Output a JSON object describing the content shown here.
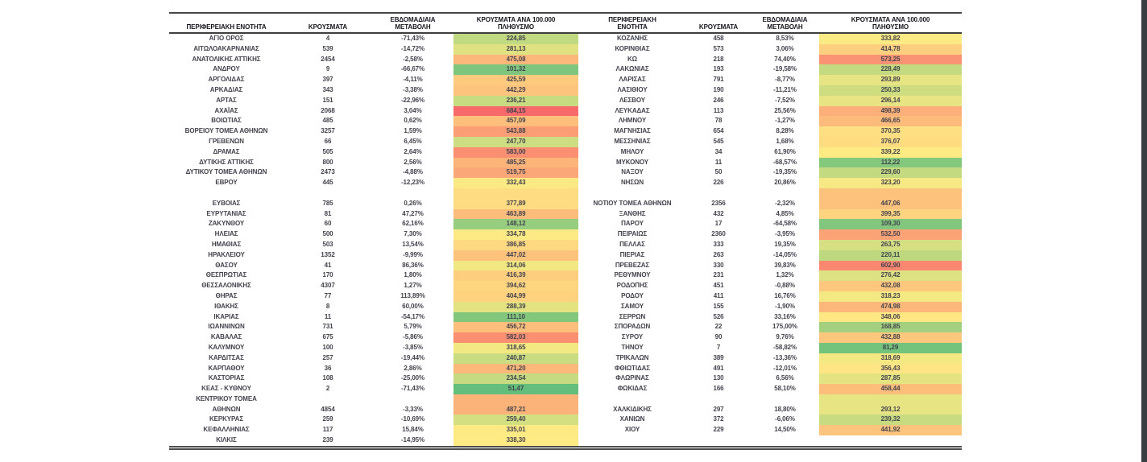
{
  "page": {
    "background": "#ffffff"
  },
  "window_edge": {
    "color": "#3b3e42"
  },
  "color_scale": {
    "min_value": 51.47,
    "mid_value": 339.22,
    "max_value": 684.15,
    "min_color": "#63BE7B",
    "mid_color": "#FFEB84",
    "max_color": "#F8696B"
  },
  "columns": [
    "ΠΕΡΙΦΕΡΕΙΑΚΗ ΕΝΟΤΗΤΑ",
    "ΚΡΟΥΣΜΑΤΑ",
    "ΕΒΔΟΜΑΔΙΑΙΑ ΜΕΤΑΒΟΛΗ",
    "ΚΡΟΥΣΜΑΤΑ ΑΝΑ 100.000 ΠΛΗΘΥΣΜΟ"
  ],
  "tables": {
    "left": {
      "rows": [
        {
          "region": "ΑΓΙΟ ΟΡΟΣ",
          "cases": "4",
          "weekly_change": "-71,43%",
          "per_100k": "224,85"
        },
        {
          "region": "ΑΙΤΩΛΟΑΚΑΡΝΑΝΙΑΣ",
          "cases": "539",
          "weekly_change": "-14,72%",
          "per_100k": "281,13"
        },
        {
          "region": "ΑΝΑΤΟΛΙΚΗΣ ΑΤΤΙΚΗΣ",
          "cases": "2454",
          "weekly_change": "-2,58%",
          "per_100k": "475,08"
        },
        {
          "region": "ΑΝΔΡΟΥ",
          "cases": "9",
          "weekly_change": "-66,67%",
          "per_100k": "101,32"
        },
        {
          "region": "ΑΡΓΟΛΙΔΑΣ",
          "cases": "397",
          "weekly_change": "-4,11%",
          "per_100k": "425,59"
        },
        {
          "region": "ΑΡΚΑΔΙΑΣ",
          "cases": "343",
          "weekly_change": "-3,38%",
          "per_100k": "442,29"
        },
        {
          "region": "ΑΡΤΑΣ",
          "cases": "151",
          "weekly_change": "-22,96%",
          "per_100k": "236,21"
        },
        {
          "region": "ΑΧΑΪΑΣ",
          "cases": "2068",
          "weekly_change": "3,04%",
          "per_100k": "684,15"
        },
        {
          "region": "ΒΟΙΩΤΙΑΣ",
          "cases": "485",
          "weekly_change": "0,62%",
          "per_100k": "457,09"
        },
        {
          "region": "ΒΟΡΕΙΟΥ ΤΟΜΕΑ ΑΘΗΝΩΝ",
          "cases": "3257",
          "weekly_change": "1,59%",
          "per_100k": "543,88"
        },
        {
          "region": "ΓΡΕΒΕΝΩΝ",
          "cases": "66",
          "weekly_change": "6,45%",
          "per_100k": "247,70"
        },
        {
          "region": "ΔΡΑΜΑΣ",
          "cases": "505",
          "weekly_change": "2,64%",
          "per_100k": "583,00"
        },
        {
          "region": "ΔΥΤΙΚΗΣ ΑΤΤΙΚΗΣ",
          "cases": "800",
          "weekly_change": "2,56%",
          "per_100k": "485,25"
        },
        {
          "region": "ΔΥΤΙΚΟΥ ΤΟΜΕΑ ΑΘΗΝΩΝ",
          "cases": "2473",
          "weekly_change": "-4,88%",
          "per_100k": "519,75"
        },
        {
          "region": "ΕΒΡΟΥ",
          "cases": "445",
          "weekly_change": "-12,23%",
          "per_100k": "332,43"
        },
        {
          "region": "ΕΥΒΟΙΑΣ",
          "cases": "785",
          "weekly_change": "0,26%",
          "per_100k": "377,89",
          "tall": true
        },
        {
          "region": "ΕΥΡΥΤΑΝΙΑΣ",
          "cases": "81",
          "weekly_change": "47,27%",
          "per_100k": "463,89"
        },
        {
          "region": "ΖΑΚΥΝΘΟΥ",
          "cases": "60",
          "weekly_change": "62,16%",
          "per_100k": "148,12"
        },
        {
          "region": "ΗΛΕΙΑΣ",
          "cases": "500",
          "weekly_change": "7,30%",
          "per_100k": "334,78"
        },
        {
          "region": "ΗΜΑΘΙΑΣ",
          "cases": "503",
          "weekly_change": "13,54%",
          "per_100k": "386,85"
        },
        {
          "region": "ΗΡΑΚΛΕΙΟΥ",
          "cases": "1352",
          "weekly_change": "-9,99%",
          "per_100k": "447,02"
        },
        {
          "region": "ΘΑΣΟΥ",
          "cases": "41",
          "weekly_change": "86,36%",
          "per_100k": "314,06"
        },
        {
          "region": "ΘΕΣΠΡΩΤΙΑΣ",
          "cases": "170",
          "weekly_change": "1,80%",
          "per_100k": "416,39"
        },
        {
          "region": "ΘΕΣΣΑΛΟΝΙΚΗΣ",
          "cases": "4307",
          "weekly_change": "1,27%",
          "per_100k": "394,62"
        },
        {
          "region": "ΘΗΡΑΣ",
          "cases": "77",
          "weekly_change": "113,89%",
          "per_100k": "404,99"
        },
        {
          "region": "ΙΘΑΚΗΣ",
          "cases": "8",
          "weekly_change": "60,00%",
          "per_100k": "288,39"
        },
        {
          "region": "ΙΚΑΡΙΑΣ",
          "cases": "11",
          "weekly_change": "-54,17%",
          "per_100k": "111,10"
        },
        {
          "region": "ΙΩΑΝΝΙΝΩΝ",
          "cases": "731",
          "weekly_change": "5,79%",
          "per_100k": "456,72"
        },
        {
          "region": "ΚΑΒΑΛΑΣ",
          "cases": "675",
          "weekly_change": "-5,86%",
          "per_100k": "582,03"
        },
        {
          "region": "ΚΑΛΥΜΝΟΥ",
          "cases": "100",
          "weekly_change": "-3,85%",
          "per_100k": "318,65"
        },
        {
          "region": "ΚΑΡΔΙΤΣΑΣ",
          "cases": "257",
          "weekly_change": "-19,44%",
          "per_100k": "240,87"
        },
        {
          "region": "ΚΑΡΠΑΘΟΥ",
          "cases": "36",
          "weekly_change": "2,86%",
          "per_100k": "471,20"
        },
        {
          "region": "ΚΑΣΤΟΡΙΑΣ",
          "cases": "108",
          "weekly_change": "-25,00%",
          "per_100k": "234,54"
        },
        {
          "region": "ΚΕΑΣ - ΚΥΘΝΟΥ",
          "cases": "2",
          "weekly_change": "-71,43%",
          "per_100k": "51,47"
        },
        {
          "region": "ΚΕΝΤΡΙΚΟΥ ΤΟΜΕΑ ΑΘΗΝΩΝ",
          "cases": "4854",
          "weekly_change": "-3,33%",
          "per_100k": "487,21",
          "tall": true,
          "wrap_region": true
        },
        {
          "region": "ΚΕΡΚΥΡΑΣ",
          "cases": "259",
          "weekly_change": "-10,69%",
          "per_100k": "259,40"
        },
        {
          "region": "ΚΕΦΑΛΛΗΝΙΑΣ",
          "cases": "117",
          "weekly_change": "15,84%",
          "per_100k": "335,01"
        },
        {
          "region": "ΚΙΛΚΙΣ",
          "cases": "239",
          "weekly_change": "-14,95%",
          "per_100k": "338,30"
        }
      ]
    },
    "right": {
      "rows": [
        {
          "region": "ΚΟΖΑΝΗΣ",
          "cases": "458",
          "weekly_change": "8,53%",
          "per_100k": "333,82"
        },
        {
          "region": "ΚΟΡΙΝΘΙΑΣ",
          "cases": "573",
          "weekly_change": "3,06%",
          "per_100k": "414,78"
        },
        {
          "region": "ΚΩ",
          "cases": "218",
          "weekly_change": "74,40%",
          "per_100k": "573,25"
        },
        {
          "region": "ΛΑΚΩΝΙΑΣ",
          "cases": "193",
          "weekly_change": "-19,58%",
          "per_100k": "228,49"
        },
        {
          "region": "ΛΑΡΙΣΑΣ",
          "cases": "791",
          "weekly_change": "-8,77%",
          "per_100k": "293,89"
        },
        {
          "region": "ΛΑΣΙΘΙΟΥ",
          "cases": "190",
          "weekly_change": "-11,21%",
          "per_100k": "250,33"
        },
        {
          "region": "ΛΕΣΒΟΥ",
          "cases": "246",
          "weekly_change": "-7,52%",
          "per_100k": "296,14"
        },
        {
          "region": "ΛΕΥΚΑΔΑΣ",
          "cases": "113",
          "weekly_change": "25,56%",
          "per_100k": "498,39"
        },
        {
          "region": "ΛΗΜΝΟΥ",
          "cases": "78",
          "weekly_change": "-1,27%",
          "per_100k": "466,65"
        },
        {
          "region": "ΜΑΓΝΗΣΙΑΣ",
          "cases": "654",
          "weekly_change": "8,28%",
          "per_100k": "370,35"
        },
        {
          "region": "ΜΕΣΣΗΝΙΑΣ",
          "cases": "545",
          "weekly_change": "1,68%",
          "per_100k": "376,07"
        },
        {
          "region": "ΜΗΛΟΥ",
          "cases": "34",
          "weekly_change": "61,90%",
          "per_100k": "339,22"
        },
        {
          "region": "ΜΥΚΟΝΟΥ",
          "cases": "11",
          "weekly_change": "-68,57%",
          "per_100k": "112,22"
        },
        {
          "region": "ΝΑΞΟΥ",
          "cases": "50",
          "weekly_change": "-19,35%",
          "per_100k": "229,60"
        },
        {
          "region": "ΝΗΣΩΝ",
          "cases": "226",
          "weekly_change": "20,86%",
          "per_100k": "323,20"
        },
        {
          "region": "ΝΟΤΙΟΥ ΤΟΜΕΑ ΑΘΗΝΩΝ",
          "cases": "2356",
          "weekly_change": "-2,32%",
          "per_100k": "447,06",
          "tall": true
        },
        {
          "region": "ΞΑΝΘΗΣ",
          "cases": "432",
          "weekly_change": "4,85%",
          "per_100k": "399,35"
        },
        {
          "region": "ΠΑΡΟΥ",
          "cases": "17",
          "weekly_change": "-64,58%",
          "per_100k": "109,30"
        },
        {
          "region": "ΠΕΙΡΑΙΩΣ",
          "cases": "2360",
          "weekly_change": "-3,95%",
          "per_100k": "532,50"
        },
        {
          "region": "ΠΕΛΛΑΣ",
          "cases": "333",
          "weekly_change": "19,35%",
          "per_100k": "263,75"
        },
        {
          "region": "ΠΙΕΡΙΑΣ",
          "cases": "263",
          "weekly_change": "-14,05%",
          "per_100k": "220,11"
        },
        {
          "region": "ΠΡΕΒΕΖΑΣ",
          "cases": "330",
          "weekly_change": "39,83%",
          "per_100k": "602,90"
        },
        {
          "region": "ΡΕΘΥΜΝΟΥ",
          "cases": "231",
          "weekly_change": "1,32%",
          "per_100k": "276,42"
        },
        {
          "region": "ΡΟΔΟΠΗΣ",
          "cases": "451",
          "weekly_change": "-0,88%",
          "per_100k": "432,08"
        },
        {
          "region": "ΡΟΔΟΥ",
          "cases": "411",
          "weekly_change": "16,76%",
          "per_100k": "318,23"
        },
        {
          "region": "ΣΑΜΟΥ",
          "cases": "155",
          "weekly_change": "-1,90%",
          "per_100k": "474,98"
        },
        {
          "region": "ΣΕΡΡΩΝ",
          "cases": "526",
          "weekly_change": "33,16%",
          "per_100k": "348,06"
        },
        {
          "region": "ΣΠΟΡΑΔΩΝ",
          "cases": "22",
          "weekly_change": "175,00%",
          "per_100k": "168,85"
        },
        {
          "region": "ΣΥΡΟΥ",
          "cases": "90",
          "weekly_change": "9,76%",
          "per_100k": "432,88"
        },
        {
          "region": "ΤΗΝΟΥ",
          "cases": "7",
          "weekly_change": "-58,82%",
          "per_100k": "81,29"
        },
        {
          "region": "ΤΡΙΚΑΛΩΝ",
          "cases": "389",
          "weekly_change": "-13,36%",
          "per_100k": "318,69"
        },
        {
          "region": "ΦΘΙΩΤΙΔΑΣ",
          "cases": "491",
          "weekly_change": "-12,01%",
          "per_100k": "356,43"
        },
        {
          "region": "ΦΛΩΡΙΝΑΣ",
          "cases": "130",
          "weekly_change": "6,56%",
          "per_100k": "287,85"
        },
        {
          "region": "ΦΩΚΙΔΑΣ",
          "cases": "166",
          "weekly_change": "58,10%",
          "per_100k": "458,44"
        },
        {
          "region": "ΧΑΛΚΙΔΙΚΗΣ",
          "cases": "297",
          "weekly_change": "18,80%",
          "per_100k": "293,12",
          "tall": true
        },
        {
          "region": "ΧΑΝΙΩΝ",
          "cases": "372",
          "weekly_change": "-6,06%",
          "per_100k": "239,32"
        },
        {
          "region": "ΧΙΟΥ",
          "cases": "229",
          "weekly_change": "14,50%",
          "per_100k": "441,92"
        },
        {
          "region": "",
          "cases": "",
          "weekly_change": "",
          "per_100k": "",
          "empty": true
        }
      ]
    }
  }
}
